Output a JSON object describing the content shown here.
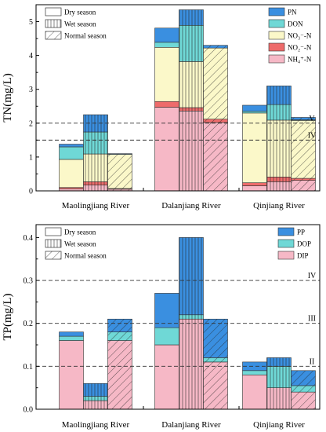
{
  "colors": {
    "PN": "#3a8fe0",
    "DON": "#6fd8d6",
    "NO3": "#fbf8c9",
    "NO2": "#ee6b6b",
    "NH4": "#f6b8c6",
    "PP": "#3a8fe0",
    "DOP": "#6fd8d6",
    "DIP": "#f6b8c6"
  },
  "chart_data": [
    {
      "type": "bar",
      "stacked": true,
      "ylabel": "TN(mg/L)",
      "ylim": [
        0,
        5.5
      ],
      "yticks": [
        0,
        1,
        2,
        3,
        4,
        5
      ],
      "categories": [
        "Maolingjiang River",
        "Dalanjiang River",
        "Qinjiang River"
      ],
      "seasons": [
        "Dry season",
        "Wet season",
        "Normal season"
      ],
      "season_legend_position": "top-left",
      "component_legend_position": "top-right",
      "components": [
        {
          "key": "NH4",
          "label": "NH₄⁺-N"
        },
        {
          "key": "NO2",
          "label": "NO₂⁻-N"
        },
        {
          "key": "NO3",
          "label": "NO₃⁻-N"
        },
        {
          "key": "DON",
          "label": "DON"
        },
        {
          "key": "PN",
          "label": "PN"
        }
      ],
      "bars": [
        [
          {
            "NH4": 0.06,
            "NO2": 0.04,
            "NO3": 0.83,
            "DON": 0.37,
            "PN": 0.08
          },
          {
            "NH4": 0.17,
            "NO2": 0.1,
            "NO3": 0.82,
            "DON": 0.65,
            "PN": 0.51
          },
          {
            "NH4": 0.05,
            "NO2": 0.02,
            "NO3": 1.01,
            "DON": 0.0,
            "PN": 0.02
          }
        ],
        [
          {
            "NH4": 2.47,
            "NO2": 0.17,
            "NO3": 1.6,
            "DON": 0.15,
            "PN": 0.42
          },
          {
            "NH4": 2.36,
            "NO2": 0.1,
            "NO3": 1.36,
            "DON": 1.07,
            "PN": 0.46
          },
          {
            "NH4": 2.02,
            "NO2": 0.1,
            "NO3": 2.1,
            "DON": 0.0,
            "PN": 0.08
          }
        ],
        [
          {
            "NH4": 0.15,
            "NO2": 0.09,
            "NO3": 2.06,
            "DON": 0.05,
            "PN": 0.18
          },
          {
            "NH4": 0.27,
            "NO2": 0.14,
            "NO3": 1.68,
            "DON": 0.46,
            "PN": 0.55
          },
          {
            "NH4": 0.31,
            "NO2": 0.06,
            "NO3": 1.71,
            "DON": 0.02,
            "PN": 0.07
          }
        ]
      ],
      "reference_lines": [
        {
          "label": "V",
          "y": 2.0
        },
        {
          "label": "IV",
          "y": 1.5
        }
      ]
    },
    {
      "type": "bar",
      "stacked": true,
      "ylabel": "TP(mg/L)",
      "ylim": [
        0,
        0.43
      ],
      "yticks": [
        0.0,
        0.1,
        0.2,
        0.3,
        0.4
      ],
      "categories": [
        "Maolingjiang River",
        "Dalanjiang River",
        "Qinjiang River"
      ],
      "seasons": [
        "Dry season",
        "Wet season",
        "Normal season"
      ],
      "season_legend_position": "top-left",
      "component_legend_position": "top-right",
      "components": [
        {
          "key": "DIP",
          "label": "DIP"
        },
        {
          "key": "DOP",
          "label": "DOP"
        },
        {
          "key": "PP",
          "label": "PP"
        }
      ],
      "bars": [
        [
          {
            "DIP": 0.16,
            "DOP": 0.01,
            "PP": 0.01
          },
          {
            "DIP": 0.02,
            "DOP": 0.01,
            "PP": 0.03
          },
          {
            "DIP": 0.16,
            "DOP": 0.02,
            "PP": 0.03
          }
        ],
        [
          {
            "DIP": 0.15,
            "DOP": 0.04,
            "PP": 0.08
          },
          {
            "DIP": 0.21,
            "DOP": 0.01,
            "PP": 0.18
          },
          {
            "DIP": 0.11,
            "DOP": 0.01,
            "PP": 0.09
          }
        ],
        [
          {
            "DIP": 0.08,
            "DOP": 0.01,
            "PP": 0.02
          },
          {
            "DIP": 0.05,
            "DOP": 0.05,
            "PP": 0.02
          },
          {
            "DIP": 0.04,
            "DOP": 0.015,
            "PP": 0.035
          }
        ]
      ],
      "reference_lines": [
        {
          "label": "IV",
          "y": 0.3
        },
        {
          "label": "III",
          "y": 0.2
        },
        {
          "label": "II",
          "y": 0.1
        }
      ]
    }
  ]
}
